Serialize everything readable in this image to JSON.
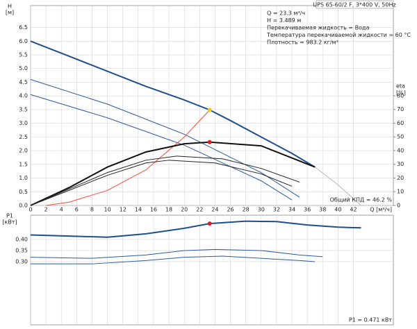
{
  "chart_data": [
    {
      "type": "line",
      "title": "UPS 65-60/2 F, 3*400 V, 50Hz",
      "annotations": [
        "Q = 23.3 м³/ч",
        "H = 3.489 м",
        "Перекачиваемая жидкость = Вода",
        "Температура перекачиваемой жидкости = 60 °C",
        "Плотность = 983.2 кг/м³"
      ],
      "efficiency_label": "Общий КПД = 46.2 %",
      "ylabel": "H",
      "yunit": "[м]",
      "y2label": "eta",
      "y2unit": "[%]",
      "xlabel": "Q [м³/ч]",
      "xlim": [
        0,
        47.2
      ],
      "ylim": [
        0,
        7.3
      ],
      "y2lim": [
        0,
        145.8
      ],
      "xticks": [
        0,
        2,
        4,
        6,
        8,
        10,
        12,
        14,
        16,
        18,
        20,
        22,
        24,
        26,
        28,
        30,
        32,
        34,
        36,
        38,
        40,
        42
      ],
      "yticks": [
        {
          "value": 0,
          "label": "0.0"
        },
        {
          "value": 0.5,
          "label": "0.5"
        },
        {
          "value": 1,
          "label": "1.0"
        },
        {
          "value": 1.5,
          "label": "1.5"
        },
        {
          "value": 2,
          "label": "2.0"
        },
        {
          "value": 2.5,
          "label": "2.5"
        },
        {
          "value": 3,
          "label": "3.0"
        },
        {
          "value": 3.5,
          "label": "3.5"
        },
        {
          "value": 4,
          "label": "4.0"
        },
        {
          "value": 4.5,
          "label": "4.5"
        },
        {
          "value": 5,
          "label": "5.0"
        },
        {
          "value": 5.5,
          "label": "5.5"
        },
        {
          "value": 6,
          "label": "6.0"
        },
        {
          "value": 6.5,
          "label": "6.5"
        }
      ],
      "y2ticks": [
        0,
        10,
        20,
        30,
        40,
        50,
        60,
        70,
        80
      ],
      "grid": true,
      "series": [
        {
          "color": "#b0b8c8",
          "width": 1,
          "x": [
            37,
            40,
            43
          ],
          "values": [
            1.4,
            0.75,
            0
          ]
        },
        {
          "color": "#1f4e8c",
          "width": 2,
          "x": [
            0,
            5,
            10,
            15,
            20,
            23.3,
            26,
            30,
            34,
            37
          ],
          "values": [
            6.0,
            5.45,
            4.9,
            4.35,
            3.85,
            3.489,
            3.1,
            2.5,
            1.9,
            1.4
          ]
        },
        {
          "color": "#2a5a9c",
          "width": 1,
          "x": [
            0,
            10,
            20,
            30,
            35
          ],
          "values": [
            4.6,
            3.7,
            2.6,
            1.2,
            0.3
          ]
        },
        {
          "color": "#2a5a9c",
          "width": 1,
          "x": [
            0,
            10,
            20,
            30,
            34
          ],
          "values": [
            4.05,
            3.2,
            2.2,
            0.9,
            0.2
          ]
        },
        {
          "color": "#ff4a3a",
          "width": 1,
          "x": [
            2,
            5,
            10,
            15,
            20,
            23.3
          ],
          "values": [
            0,
            0.12,
            0.55,
            1.3,
            2.5,
            3.489
          ]
        },
        {
          "color": "#111111",
          "width": 2,
          "axis": "y2",
          "x": [
            0,
            5,
            10,
            15,
            20,
            23.3,
            30,
            37
          ],
          "values": [
            0,
            13,
            28,
            39,
            45,
            46.2,
            43.5,
            28
          ]
        },
        {
          "color": "#222222",
          "width": 1,
          "axis": "y2",
          "x": [
            0,
            5,
            10,
            15,
            19,
            25,
            30,
            35
          ],
          "values": [
            0,
            12,
            24,
            33,
            36,
            34,
            27,
            17
          ]
        },
        {
          "color": "#222222",
          "width": 1,
          "axis": "y2",
          "x": [
            0,
            5,
            10,
            15,
            18,
            24,
            30,
            34
          ],
          "values": [
            0,
            11,
            22,
            31,
            33,
            31,
            23,
            14
          ]
        }
      ],
      "markers": [
        {
          "x": 23.3,
          "y": 3.489,
          "color": "#f5c518"
        },
        {
          "x": 23.3,
          "y": 46.2,
          "axis": "y2",
          "color": "#e02020"
        }
      ]
    },
    {
      "type": "line",
      "ylabel": "P1",
      "yunit": "[кВт]",
      "power_label": "P1 = 0.471 кВт",
      "xlim": [
        0,
        47.2
      ],
      "ylim": [
        0.016,
        0.509
      ],
      "xticks": [
        0,
        2,
        4,
        6,
        8,
        10,
        12,
        14,
        16,
        18,
        20,
        22,
        24,
        26,
        28,
        30,
        32,
        34,
        36,
        38,
        40,
        42
      ],
      "yticks": [
        {
          "value": 0.3,
          "label": "0.30"
        },
        {
          "value": 0.35,
          "label": "0.35"
        },
        {
          "value": 0.4,
          "label": "0.40"
        }
      ],
      "grid": true,
      "series": [
        {
          "color": "#1f4e8c",
          "width": 2,
          "x": [
            0,
            5,
            10,
            15,
            20,
            23.3,
            28,
            32,
            36,
            40,
            43
          ],
          "values": [
            0.42,
            0.415,
            0.41,
            0.425,
            0.45,
            0.471,
            0.482,
            0.48,
            0.465,
            0.455,
            0.452
          ]
        },
        {
          "color": "#2a5a9c",
          "width": 1,
          "x": [
            0,
            8,
            15,
            20,
            24,
            30,
            35,
            38
          ],
          "values": [
            0.32,
            0.315,
            0.33,
            0.35,
            0.355,
            0.35,
            0.33,
            0.322
          ]
        },
        {
          "color": "#2a5a9c",
          "width": 1,
          "x": [
            0,
            8,
            15,
            20,
            25,
            30,
            35,
            37
          ],
          "values": [
            0.29,
            0.29,
            0.305,
            0.32,
            0.325,
            0.315,
            0.305,
            0.3
          ]
        }
      ],
      "markers": [
        {
          "x": 23.3,
          "y": 0.471,
          "color": "#e02020"
        }
      ]
    }
  ]
}
